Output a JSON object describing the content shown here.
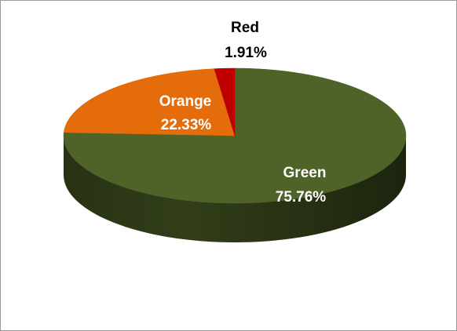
{
  "chart_data": {
    "type": "pie",
    "title": "",
    "style": "3d",
    "slices": [
      {
        "label": "Green",
        "percent_label": "75.76%",
        "value": 75.76,
        "color": "#4f6228",
        "side_color": "#34421a",
        "label_color": "#ffffff"
      },
      {
        "label": "Orange",
        "percent_label": "22.33%",
        "value": 22.33,
        "color": "#e46c0a",
        "side_color": "#a34c05",
        "label_color": "#ffffff"
      },
      {
        "label": "Red",
        "percent_label": "1.91%",
        "value": 1.91,
        "color": "#c00000",
        "side_color": "#7f0000",
        "label_color": "#000000"
      }
    ],
    "legend": "none",
    "start_angle": "top, clockwise"
  }
}
